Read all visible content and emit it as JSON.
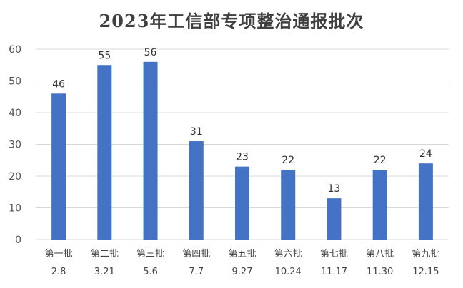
{
  "chart_data": {
    "type": "bar",
    "title": "2023年工信部专项整治通报批次",
    "xlabel": "",
    "ylabel": "",
    "ylim": [
      0,
      60
    ],
    "yticks": [
      0,
      10,
      20,
      30,
      40,
      50,
      60
    ],
    "grid": true,
    "categories": [
      {
        "batch": "第一批",
        "date": "2.8"
      },
      {
        "batch": "第二批",
        "date": "3.21"
      },
      {
        "batch": "第三批",
        "date": "5.6"
      },
      {
        "batch": "第四批",
        "date": "7.7"
      },
      {
        "batch": "第五批",
        "date": "9.27"
      },
      {
        "batch": "第六批",
        "date": "10.24"
      },
      {
        "batch": "第七批",
        "date": "11.17"
      },
      {
        "batch": "第八批",
        "date": "11.30"
      },
      {
        "batch": "第九批",
        "date": "12.15"
      }
    ],
    "values": [
      46,
      55,
      56,
      31,
      23,
      22,
      13,
      22,
      24
    ],
    "bar_color": "#4472C4",
    "grid_color": "#d9d9d9"
  }
}
